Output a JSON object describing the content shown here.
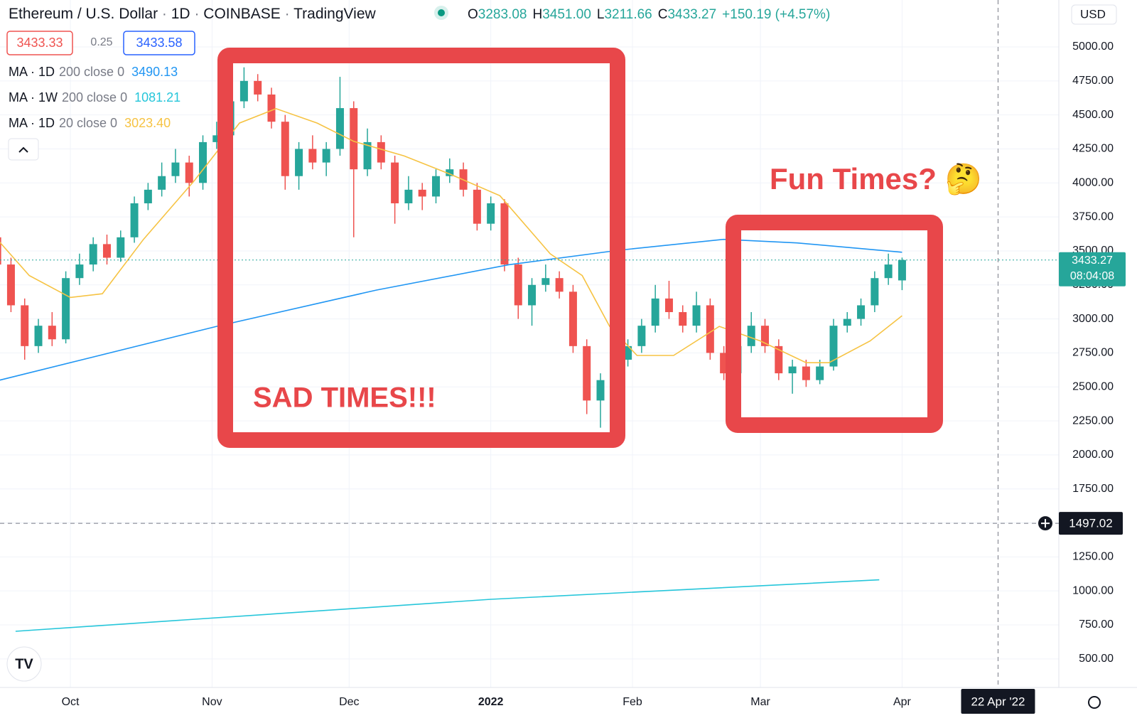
{
  "header": {
    "symbol": "Ethereum / U.S. Dollar",
    "interval": "1D",
    "exchange": "COINBASE",
    "source": "TradingView",
    "ohlc": [
      {
        "letter": "O",
        "value": "3283.08"
      },
      {
        "letter": "H",
        "value": "3451.00"
      },
      {
        "letter": "L",
        "value": "3211.66"
      },
      {
        "letter": "C",
        "value": "3433.27"
      }
    ],
    "change": "+150.19 (+4.57%)",
    "bid": "3433.33",
    "spread": "0.25",
    "ask": "3433.58",
    "currency": "USD"
  },
  "chart_data": {
    "type": "candlestick",
    "up_color": "#26a69a",
    "down_color": "#ef5350",
    "grid": true,
    "legend": "top-left",
    "x": [
      -16,
      -13,
      -10,
      -7,
      -4,
      -1,
      2,
      5,
      8,
      11,
      14,
      17,
      20,
      23,
      26,
      29,
      32,
      35,
      38,
      41,
      44,
      47,
      50,
      53,
      56,
      59,
      62,
      65,
      68,
      71,
      74,
      77,
      80,
      83,
      86,
      89,
      92,
      95,
      98,
      101,
      104,
      107,
      110,
      113,
      116,
      119,
      122,
      125,
      128,
      131,
      134,
      137,
      140,
      143,
      146,
      149,
      152,
      155,
      158,
      161,
      164,
      167,
      170,
      173,
      176,
      179,
      182
    ],
    "candles": [
      [
        3600,
        3680,
        3350,
        3400
      ],
      [
        3400,
        3450,
        3050,
        3100
      ],
      [
        3100,
        3150,
        2700,
        2800
      ],
      [
        2800,
        3000,
        2750,
        2950
      ],
      [
        2950,
        3050,
        2800,
        2850
      ],
      [
        2850,
        3350,
        2820,
        3300
      ],
      [
        3300,
        3480,
        3250,
        3400
      ],
      [
        3400,
        3600,
        3350,
        3550
      ],
      [
        3550,
        3620,
        3400,
        3450
      ],
      [
        3450,
        3650,
        3420,
        3600
      ],
      [
        3600,
        3900,
        3560,
        3850
      ],
      [
        3850,
        4000,
        3800,
        3950
      ],
      [
        3950,
        4150,
        3900,
        4050
      ],
      [
        4050,
        4250,
        4000,
        4150
      ],
      [
        4150,
        4200,
        3900,
        4000
      ],
      [
        4000,
        4350,
        3950,
        4300
      ],
      [
        4300,
        4450,
        4250,
        4350
      ],
      [
        4350,
        4650,
        4300,
        4600
      ],
      [
        4600,
        4850,
        4550,
        4750
      ],
      [
        4750,
        4800,
        4600,
        4650
      ],
      [
        4650,
        4700,
        4400,
        4450
      ],
      [
        4450,
        4500,
        3950,
        4050
      ],
      [
        4050,
        4300,
        3950,
        4250
      ],
      [
        4250,
        4350,
        4100,
        4150
      ],
      [
        4150,
        4300,
        4050,
        4250
      ],
      [
        4250,
        4780,
        4200,
        4550
      ],
      [
        4550,
        4600,
        3600,
        4100
      ],
      [
        4100,
        4400,
        4050,
        4300
      ],
      [
        4300,
        4350,
        4100,
        4150
      ],
      [
        4150,
        4200,
        3700,
        3850
      ],
      [
        3850,
        4050,
        3800,
        3950
      ],
      [
        3950,
        4000,
        3800,
        3900
      ],
      [
        3900,
        4100,
        3850,
        4050
      ],
      [
        4050,
        4180,
        4000,
        4100
      ],
      [
        4100,
        4150,
        3900,
        3950
      ],
      [
        3950,
        4000,
        3650,
        3700
      ],
      [
        3700,
        3900,
        3650,
        3850
      ],
      [
        3850,
        3880,
        3350,
        3400
      ],
      [
        3400,
        3450,
        3000,
        3100
      ],
      [
        3100,
        3300,
        2950,
        3250
      ],
      [
        3250,
        3400,
        3200,
        3300
      ],
      [
        3300,
        3350,
        3150,
        3200
      ],
      [
        3200,
        3250,
        2750,
        2800
      ],
      [
        2800,
        2850,
        2300,
        2400
      ],
      [
        2400,
        2600,
        2200,
        2550
      ],
      [
        2550,
        2750,
        2500,
        2700
      ],
      [
        2700,
        2850,
        2650,
        2800
      ],
      [
        2800,
        3000,
        2750,
        2950
      ],
      [
        2950,
        3250,
        2900,
        3150
      ],
      [
        3150,
        3280,
        3000,
        3050
      ],
      [
        3050,
        3100,
        2900,
        2950
      ],
      [
        2950,
        3200,
        2900,
        3100
      ],
      [
        3100,
        3150,
        2700,
        2750
      ],
      [
        2750,
        2800,
        2550,
        2600
      ],
      [
        2600,
        2850,
        2550,
        2800
      ],
      [
        2800,
        3050,
        2750,
        2950
      ],
      [
        2950,
        3000,
        2750,
        2800
      ],
      [
        2800,
        2850,
        2550,
        2600
      ],
      [
        2600,
        2700,
        2450,
        2650
      ],
      [
        2650,
        2700,
        2500,
        2550
      ],
      [
        2550,
        2700,
        2520,
        2650
      ],
      [
        2650,
        3000,
        2620,
        2950
      ],
      [
        2950,
        3050,
        2900,
        3000
      ],
      [
        3000,
        3150,
        2950,
        3100
      ],
      [
        3100,
        3350,
        3050,
        3300
      ],
      [
        3300,
        3480,
        3250,
        3400
      ],
      [
        3283.08,
        3451.0,
        3211.66,
        3433.27
      ]
    ],
    "series": [
      {
        "name": "MA · 1D",
        "params": "200 close 0",
        "value_label": "3490.13",
        "color": "#2196f3",
        "x": [
          -16,
          32,
          67,
          96,
          120,
          143,
          159,
          182
        ],
        "values": [
          2545,
          2945,
          3212,
          3399,
          3505,
          3585,
          3559,
          3490.13
        ]
      },
      {
        "name": "MA · 1W",
        "params": "200 close 0",
        "value_label": "1081.21",
        "color": "#26c6da",
        "x": [
          -12,
          92,
          177
        ],
        "values": [
          703,
          938,
          1081.21
        ]
      },
      {
        "name": "MA · 1D",
        "params": "20 close 0",
        "value_label": "3023.40",
        "color": "#f6c343",
        "x": [
          -16,
          -9,
          0,
          7,
          16,
          27,
          37,
          45,
          54,
          62,
          73,
          83,
          94,
          105,
          112,
          118,
          124,
          132,
          142,
          151,
          161,
          166,
          175,
          182
        ],
        "values": [
          3585,
          3319,
          3158,
          3185,
          3585,
          4012,
          4440,
          4546,
          4440,
          4306,
          4199,
          4066,
          3906,
          3479,
          3319,
          2945,
          2731,
          2731,
          2945,
          2838,
          2678,
          2678,
          2838,
          3023.4
        ]
      }
    ],
    "xlim": [
      -15.4,
      216.3
    ],
    "xticks": [
      {
        "value": 0,
        "label": "Oct"
      },
      {
        "value": 31,
        "label": "Nov"
      },
      {
        "value": 61,
        "label": "Dec"
      },
      {
        "value": 92,
        "label": "2022"
      },
      {
        "value": 123,
        "label": "Feb"
      },
      {
        "value": 151,
        "label": "Mar"
      },
      {
        "value": 182,
        "label": "Apr"
      }
    ],
    "ylim": [
      290,
      5345
    ],
    "yticks": [
      {
        "value": 500,
        "label": "500.00"
      },
      {
        "value": 750,
        "label": "750.00"
      },
      {
        "value": 1000,
        "label": "1000.00"
      },
      {
        "value": 1250,
        "label": "1250.00"
      },
      {
        "value": 1500,
        "label": "1500.00"
      },
      {
        "value": 1750,
        "label": "1750.00"
      },
      {
        "value": 2000,
        "label": "2000.00"
      },
      {
        "value": 2250,
        "label": "2250.00"
      },
      {
        "value": 2500,
        "label": "2500.00"
      },
      {
        "value": 2750,
        "label": "2750.00"
      },
      {
        "value": 3000,
        "label": "3000.00"
      },
      {
        "value": 3250,
        "label": "3250.00"
      },
      {
        "value": 3500,
        "label": "3500.00"
      },
      {
        "value": 3750,
        "label": "3750.00"
      },
      {
        "value": 4000,
        "label": "4000.00"
      },
      {
        "value": 4250,
        "label": "4250.00"
      },
      {
        "value": 4500,
        "label": "4500.00"
      },
      {
        "value": 4750,
        "label": "4750.00"
      },
      {
        "value": 5000,
        "label": "5000.00"
      }
    ],
    "countdown": "08:04:08",
    "crosshair": {
      "price": 1497.02,
      "x": 203,
      "x_label": "22 Apr '22"
    },
    "annotations": [
      "SAD TIMES!!!",
      "Fun Times? 🤔"
    ]
  }
}
